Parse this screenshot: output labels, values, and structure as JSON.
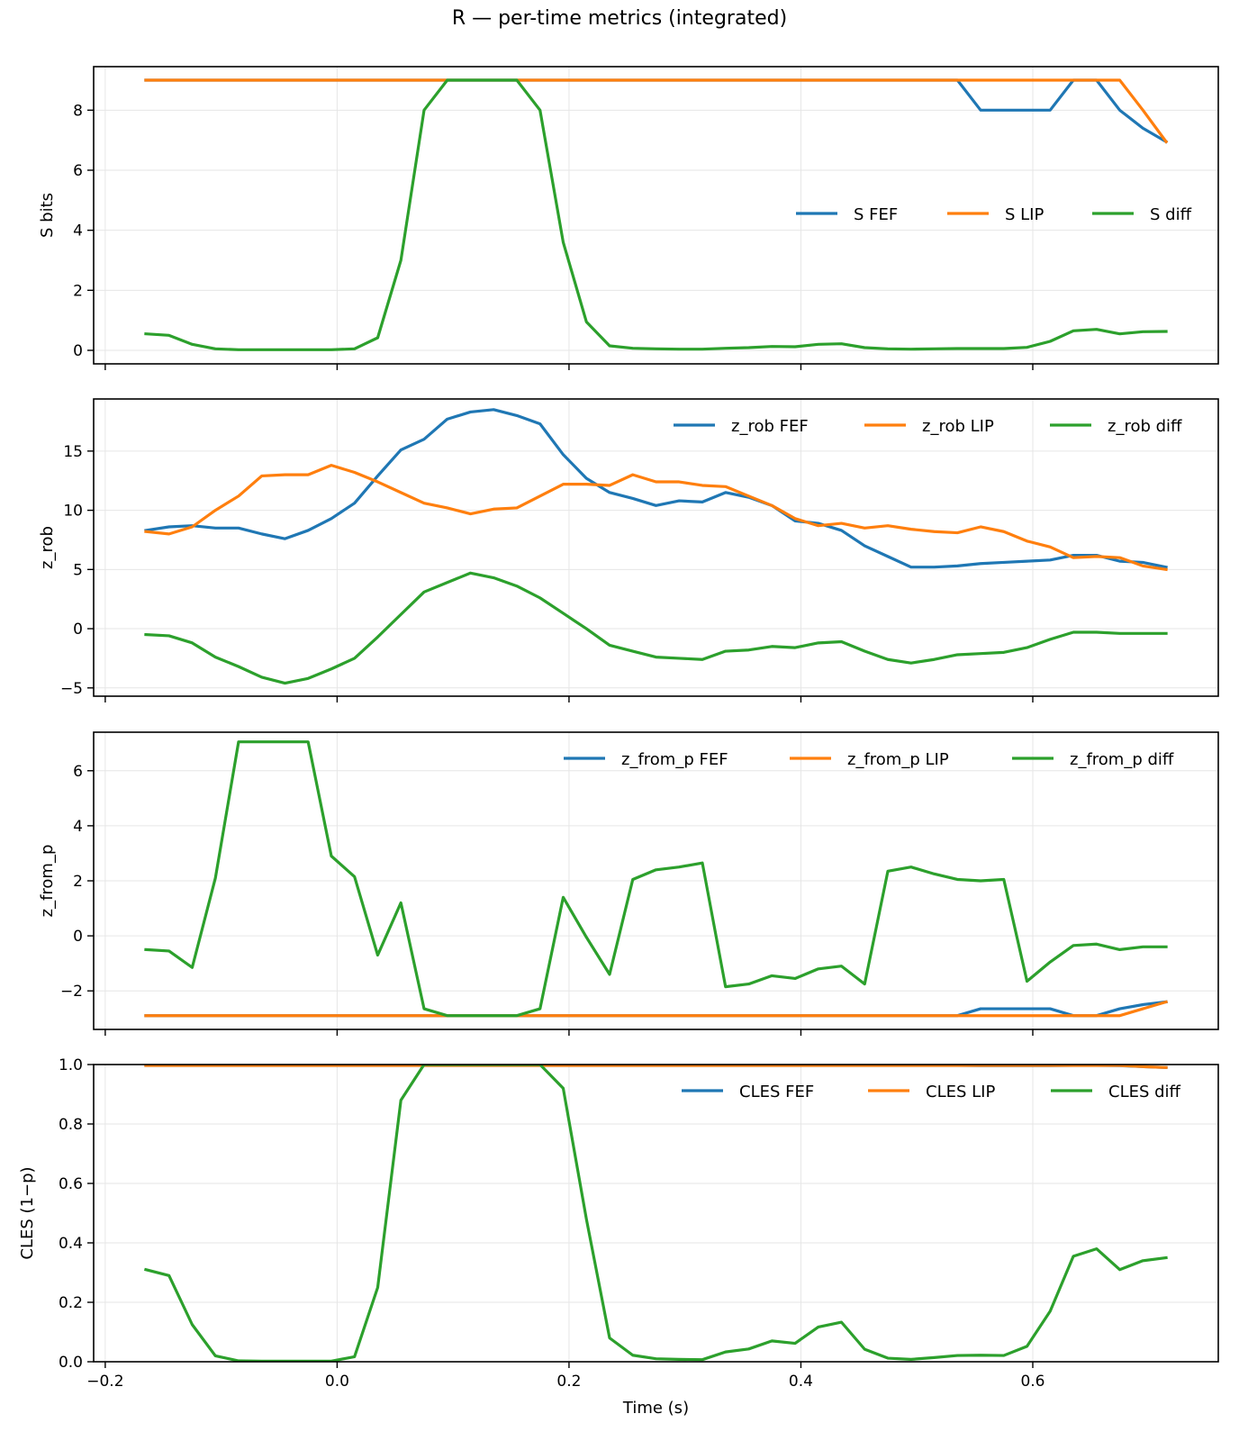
{
  "title": "R — per-time metrics (integrated)",
  "colors": {
    "FEF": "#1f77b4",
    "LIP": "#ff7f0e",
    "diff": "#2ca02c"
  },
  "chart_data": [
    {
      "type": "line",
      "ylabel": "S bits",
      "ylim": [
        -0.45,
        9.45
      ],
      "yticks": [
        0,
        2,
        4,
        6,
        8
      ],
      "xlim": [
        -0.21,
        0.76
      ],
      "grid": true,
      "legend": {
        "placement": "center-right"
      },
      "x": [
        -0.165,
        -0.145,
        -0.125,
        -0.105,
        -0.085,
        -0.065,
        -0.045,
        -0.025,
        -0.005,
        0.015,
        0.035,
        0.055,
        0.075,
        0.095,
        0.115,
        0.135,
        0.155,
        0.175,
        0.195,
        0.215,
        0.235,
        0.255,
        0.275,
        0.295,
        0.315,
        0.335,
        0.355,
        0.375,
        0.395,
        0.415,
        0.435,
        0.455,
        0.475,
        0.495,
        0.515,
        0.535,
        0.555,
        0.575,
        0.595,
        0.615,
        0.635,
        0.655,
        0.675,
        0.695,
        0.715
      ],
      "series": [
        {
          "name": "S FEF",
          "key": "FEF",
          "values": [
            9,
            9,
            9,
            9,
            9,
            9,
            9,
            9,
            9,
            9,
            9,
            9,
            9,
            9,
            9,
            9,
            9,
            9,
            9,
            9,
            9,
            9,
            9,
            9,
            9,
            9,
            9,
            9,
            9,
            9,
            9,
            9,
            9,
            9,
            9,
            9,
            8,
            8,
            8,
            8,
            9,
            9,
            8,
            7.4,
            6.95
          ]
        },
        {
          "name": "S LIP",
          "key": "LIP",
          "values": [
            9,
            9,
            9,
            9,
            9,
            9,
            9,
            9,
            9,
            9,
            9,
            9,
            9,
            9,
            9,
            9,
            9,
            9,
            9,
            9,
            9,
            9,
            9,
            9,
            9,
            9,
            9,
            9,
            9,
            9,
            9,
            9,
            9,
            9,
            9,
            9,
            9,
            9,
            9,
            9,
            9,
            9,
            9,
            8,
            6.95
          ]
        },
        {
          "name": "S diff",
          "key": "diff",
          "values": [
            0.55,
            0.5,
            0.2,
            0.05,
            0.02,
            0.02,
            0.02,
            0.02,
            0.02,
            0.05,
            0.42,
            3.0,
            8.0,
            9,
            9,
            9,
            9,
            8.0,
            3.6,
            0.95,
            0.15,
            0.07,
            0.05,
            0.04,
            0.04,
            0.07,
            0.09,
            0.13,
            0.12,
            0.2,
            0.22,
            0.09,
            0.05,
            0.04,
            0.05,
            0.06,
            0.06,
            0.06,
            0.1,
            0.3,
            0.65,
            0.7,
            0.55,
            0.62,
            0.63
          ]
        }
      ]
    },
    {
      "type": "line",
      "ylabel": "z_rob",
      "ylim": [
        -5.7,
        19.4
      ],
      "yticks": [
        -5,
        0,
        5,
        10,
        15
      ],
      "xlim": [
        -0.21,
        0.76
      ],
      "grid": true,
      "legend": {
        "placement": "top-right"
      },
      "x": [
        -0.165,
        -0.145,
        -0.125,
        -0.105,
        -0.085,
        -0.065,
        -0.045,
        -0.025,
        -0.005,
        0.015,
        0.035,
        0.055,
        0.075,
        0.095,
        0.115,
        0.135,
        0.155,
        0.175,
        0.195,
        0.215,
        0.235,
        0.255,
        0.275,
        0.295,
        0.315,
        0.335,
        0.355,
        0.375,
        0.395,
        0.415,
        0.435,
        0.455,
        0.475,
        0.495,
        0.515,
        0.535,
        0.555,
        0.575,
        0.595,
        0.615,
        0.635,
        0.655,
        0.675,
        0.695,
        0.715
      ],
      "series": [
        {
          "name": "z_rob FEF",
          "key": "FEF",
          "values": [
            8.3,
            8.6,
            8.7,
            8.5,
            8.5,
            8.0,
            7.6,
            8.3,
            9.3,
            10.6,
            12.9,
            15.1,
            16.0,
            17.7,
            18.3,
            18.5,
            18.0,
            17.3,
            14.7,
            12.7,
            11.5,
            11.0,
            10.4,
            10.8,
            10.7,
            11.5,
            11.1,
            10.4,
            9.1,
            8.9,
            8.3,
            7.0,
            6.1,
            5.2,
            5.2,
            5.3,
            5.5,
            5.6,
            5.7,
            5.8,
            6.2,
            6.2,
            5.7,
            5.6,
            5.2
          ]
        },
        {
          "name": "z_rob LIP",
          "key": "LIP",
          "values": [
            8.2,
            8.0,
            8.6,
            10.0,
            11.2,
            12.9,
            13.0,
            13.0,
            13.8,
            13.2,
            12.4,
            11.5,
            10.6,
            10.2,
            9.7,
            10.1,
            10.2,
            11.2,
            12.2,
            12.2,
            12.1,
            13.0,
            12.4,
            12.4,
            12.1,
            12.0,
            11.2,
            10.4,
            9.3,
            8.7,
            8.9,
            8.5,
            8.7,
            8.4,
            8.2,
            8.1,
            8.6,
            8.2,
            7.4,
            6.9,
            6.0,
            6.1,
            6.0,
            5.3,
            5.0
          ]
        },
        {
          "name": "z_rob diff",
          "key": "diff",
          "values": [
            -0.5,
            -0.6,
            -1.2,
            -2.4,
            -3.2,
            -4.1,
            -4.6,
            -4.2,
            -3.4,
            -2.5,
            -0.7,
            1.2,
            3.1,
            3.9,
            4.7,
            4.3,
            3.6,
            2.6,
            1.3,
            0.0,
            -1.4,
            -1.9,
            -2.4,
            -2.5,
            -2.6,
            -1.9,
            -1.8,
            -1.5,
            -1.6,
            -1.2,
            -1.1,
            -1.9,
            -2.6,
            -2.9,
            -2.6,
            -2.2,
            -2.1,
            -2.0,
            -1.6,
            -0.9,
            -0.3,
            -0.3,
            -0.4,
            -0.4,
            -0.4
          ]
        }
      ]
    },
    {
      "type": "line",
      "ylabel": "z_from_p",
      "ylim": [
        -3.4,
        7.4
      ],
      "yticks": [
        -2,
        0,
        2,
        4,
        6
      ],
      "xlim": [
        -0.21,
        0.76
      ],
      "grid": true,
      "legend": {
        "placement": "top-right"
      },
      "x": [
        -0.165,
        -0.145,
        -0.125,
        -0.105,
        -0.085,
        -0.065,
        -0.045,
        -0.025,
        -0.005,
        0.015,
        0.035,
        0.055,
        0.075,
        0.095,
        0.115,
        0.135,
        0.155,
        0.175,
        0.195,
        0.215,
        0.235,
        0.255,
        0.275,
        0.295,
        0.315,
        0.335,
        0.355,
        0.375,
        0.395,
        0.415,
        0.435,
        0.455,
        0.475,
        0.495,
        0.515,
        0.535,
        0.555,
        0.575,
        0.595,
        0.615,
        0.635,
        0.655,
        0.675,
        0.695,
        0.715
      ],
      "series": [
        {
          "name": "z_from_p FEF",
          "key": "FEF",
          "values": [
            -2.9,
            -2.9,
            -2.9,
            -2.9,
            -2.9,
            -2.9,
            -2.9,
            -2.9,
            -2.9,
            -2.9,
            -2.9,
            -2.9,
            -2.9,
            -2.9,
            -2.9,
            -2.9,
            -2.9,
            -2.9,
            -2.9,
            -2.9,
            -2.9,
            -2.9,
            -2.9,
            -2.9,
            -2.9,
            -2.9,
            -2.9,
            -2.9,
            -2.9,
            -2.9,
            -2.9,
            -2.9,
            -2.9,
            -2.9,
            -2.9,
            -2.9,
            -2.65,
            -2.65,
            -2.65,
            -2.65,
            -2.9,
            -2.9,
            -2.65,
            -2.5,
            -2.4
          ]
        },
        {
          "name": "z_from_p LIP",
          "key": "LIP",
          "values": [
            -2.9,
            -2.9,
            -2.9,
            -2.9,
            -2.9,
            -2.9,
            -2.9,
            -2.9,
            -2.9,
            -2.9,
            -2.9,
            -2.9,
            -2.9,
            -2.9,
            -2.9,
            -2.9,
            -2.9,
            -2.9,
            -2.9,
            -2.9,
            -2.9,
            -2.9,
            -2.9,
            -2.9,
            -2.9,
            -2.9,
            -2.9,
            -2.9,
            -2.9,
            -2.9,
            -2.9,
            -2.9,
            -2.9,
            -2.9,
            -2.9,
            -2.9,
            -2.9,
            -2.9,
            -2.9,
            -2.9,
            -2.9,
            -2.9,
            -2.9,
            -2.65,
            -2.4
          ]
        },
        {
          "name": "z_from_p diff",
          "key": "diff",
          "values": [
            -0.5,
            -0.55,
            -1.15,
            2.1,
            7.05,
            7.05,
            7.05,
            7.05,
            2.9,
            2.15,
            -0.7,
            1.2,
            -2.65,
            -2.9,
            -2.9,
            -2.9,
            -2.9,
            -2.65,
            1.4,
            -0.05,
            -1.4,
            2.05,
            2.4,
            2.5,
            2.65,
            -1.85,
            -1.75,
            -1.45,
            -1.55,
            -1.2,
            -1.1,
            -1.75,
            2.35,
            2.5,
            2.25,
            2.05,
            2.0,
            2.05,
            -1.65,
            -0.95,
            -0.35,
            -0.3,
            -0.5,
            -0.4,
            -0.4
          ]
        }
      ]
    },
    {
      "type": "line",
      "ylabel": "CLES (1−p)",
      "xlabel": "Time (s)",
      "ylim": [
        0.0,
        1.0
      ],
      "yticks": [
        0.0,
        0.2,
        0.4,
        0.6,
        0.8,
        1.0
      ],
      "xlim": [
        -0.21,
        0.76
      ],
      "xticks": [
        -0.2,
        0.0,
        0.2,
        0.4,
        0.6
      ],
      "grid": true,
      "legend": {
        "placement": "top-right"
      },
      "x": [
        -0.165,
        -0.145,
        -0.125,
        -0.105,
        -0.085,
        -0.065,
        -0.045,
        -0.025,
        -0.005,
        0.015,
        0.035,
        0.055,
        0.075,
        0.095,
        0.115,
        0.135,
        0.155,
        0.175,
        0.195,
        0.215,
        0.235,
        0.255,
        0.275,
        0.295,
        0.315,
        0.335,
        0.355,
        0.375,
        0.395,
        0.415,
        0.435,
        0.455,
        0.475,
        0.495,
        0.515,
        0.535,
        0.555,
        0.575,
        0.595,
        0.615,
        0.635,
        0.655,
        0.675,
        0.695,
        0.715
      ],
      "series": [
        {
          "name": "CLES FEF",
          "key": "FEF",
          "values": [
            0.997,
            0.997,
            0.997,
            0.997,
            0.997,
            0.997,
            0.997,
            0.997,
            0.997,
            0.997,
            0.997,
            0.997,
            0.997,
            0.997,
            0.997,
            0.997,
            0.997,
            0.997,
            0.997,
            0.997,
            0.997,
            0.997,
            0.997,
            0.997,
            0.997,
            0.997,
            0.997,
            0.997,
            0.997,
            0.997,
            0.997,
            0.997,
            0.997,
            0.997,
            0.997,
            0.997,
            0.996,
            0.996,
            0.996,
            0.996,
            0.997,
            0.997,
            0.996,
            0.993,
            0.99
          ]
        },
        {
          "name": "CLES LIP",
          "key": "LIP",
          "values": [
            0.997,
            0.997,
            0.997,
            0.997,
            0.997,
            0.997,
            0.997,
            0.997,
            0.997,
            0.997,
            0.997,
            0.997,
            0.997,
            0.997,
            0.997,
            0.997,
            0.997,
            0.997,
            0.997,
            0.997,
            0.997,
            0.997,
            0.997,
            0.997,
            0.997,
            0.997,
            0.997,
            0.997,
            0.997,
            0.997,
            0.997,
            0.997,
            0.997,
            0.997,
            0.997,
            0.997,
            0.997,
            0.997,
            0.997,
            0.997,
            0.997,
            0.997,
            0.997,
            0.993,
            0.99
          ]
        },
        {
          "name": "CLES diff",
          "key": "diff",
          "values": [
            0.31,
            0.29,
            0.125,
            0.02,
            0.003,
            0.002,
            0.002,
            0.002,
            0.002,
            0.017,
            0.25,
            0.88,
            1.0,
            1.0,
            1.0,
            1.0,
            1.0,
            1.0,
            0.92,
            0.48,
            0.08,
            0.022,
            0.01,
            0.008,
            0.007,
            0.033,
            0.043,
            0.07,
            0.062,
            0.117,
            0.133,
            0.042,
            0.012,
            0.008,
            0.014,
            0.021,
            0.022,
            0.021,
            0.052,
            0.17,
            0.355,
            0.38,
            0.31,
            0.34,
            0.35
          ]
        }
      ]
    }
  ]
}
